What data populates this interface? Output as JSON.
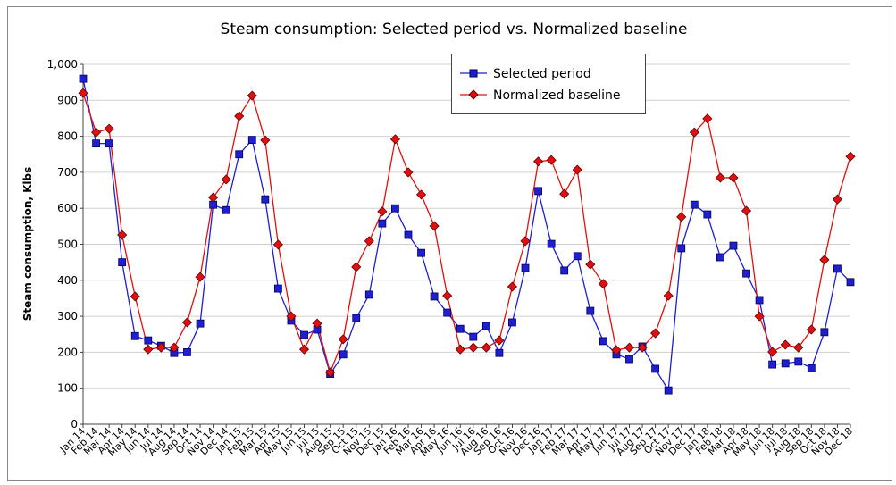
{
  "chart_data": {
    "type": "line",
    "title": "Steam consumption: Selected period vs. Normalized baseline",
    "y_label": "Steam consumption, Klbs",
    "categories": [
      "Jan 14",
      "Feb 14",
      "Mar 14",
      "Apr 14",
      "May 14",
      "Jun 14",
      "Jul 14",
      "Aug 14",
      "Sep 14",
      "Oct 14",
      "Nov 14",
      "Dec 14",
      "Jan 15",
      "Feb 15",
      "Mar 15",
      "Apr 15",
      "May 15",
      "Jun 15",
      "Jul 15",
      "Aug 15",
      "Sep 15",
      "Oct 15",
      "Nov 15",
      "Dec 15",
      "Jan 16",
      "Feb 16",
      "Mar 16",
      "Apr 16",
      "May 16",
      "Jun 16",
      "Jul 16",
      "Aug 16",
      "Sep 16",
      "Oct 16",
      "Nov 16",
      "Dec 16",
      "Jan 17",
      "Feb 17",
      "Mar 17",
      "Apr 17",
      "May 17",
      "Jun 17",
      "Jul 17",
      "Aug 17",
      "Sep 17",
      "Oct 17",
      "Nov 17",
      "Dec 17",
      "Jan 18",
      "Feb 18",
      "Mar 18",
      "Apr 18",
      "May 18",
      "Jun 18",
      "Jul 18",
      "Aug 18",
      "Sep 18",
      "Oct 18",
      "Nov 18",
      "Dec 18"
    ],
    "series": [
      {
        "name": "Selected period",
        "color": "#1f1fd0",
        "marker": "square",
        "values": [
          960,
          780,
          780,
          450,
          245,
          233,
          218,
          198,
          200,
          280,
          610,
          595,
          750,
          790,
          625,
          377,
          288,
          248,
          263,
          140,
          194,
          295,
          360,
          558,
          600,
          526,
          476,
          355,
          310,
          265,
          243,
          273,
          198,
          283,
          434,
          648,
          501,
          427,
          467,
          315,
          231,
          194,
          181,
          216,
          154,
          94,
          489,
          610,
          583,
          464,
          496,
          419,
          345,
          166,
          169,
          174,
          156,
          256,
          432,
          395
        ]
      },
      {
        "name": "Normalized baseline",
        "color": "#e01010",
        "marker": "diamond",
        "values": [
          920,
          811,
          821,
          526,
          355,
          208,
          213,
          213,
          283,
          409,
          630,
          680,
          856,
          913,
          789,
          499,
          300,
          208,
          280,
          144,
          236,
          437,
          509,
          591,
          792,
          700,
          638,
          551,
          357,
          208,
          213,
          213,
          233,
          382,
          509,
          730,
          734,
          640,
          707,
          444,
          390,
          206,
          213,
          213,
          253,
          357,
          576,
          811,
          849,
          685,
          685,
          593,
          300,
          201,
          221,
          213,
          263,
          457,
          625,
          744
        ]
      }
    ],
    "ylim": [
      0,
      1000
    ],
    "yticks": [
      0,
      100,
      200,
      300,
      400,
      500,
      600,
      700,
      800,
      900,
      {
        "value": 1000,
        "label": "1,000"
      }
    ],
    "grid": true,
    "legend": "top"
  }
}
